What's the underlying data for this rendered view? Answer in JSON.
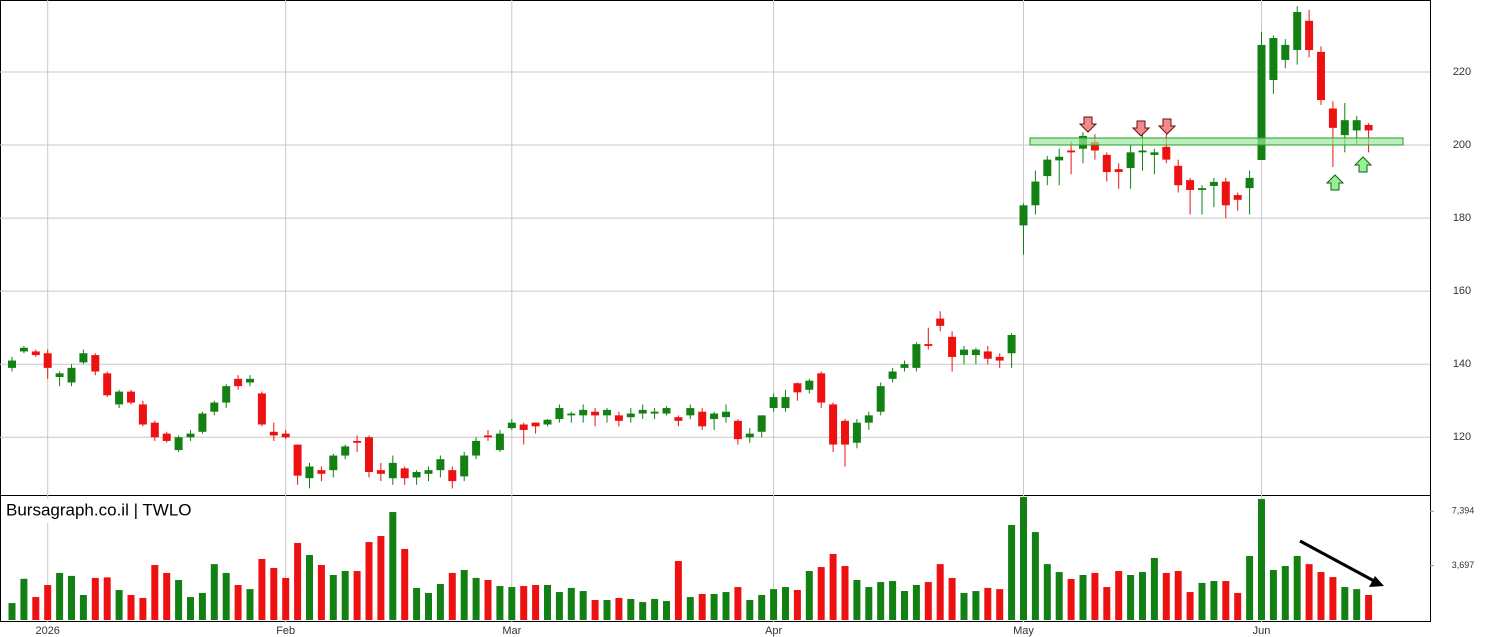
{
  "chart_data": {
    "type": "candlestick",
    "title": "Bursagraph.co.il | TWLO",
    "categories": [
      null,
      null,
      null,
      "2026",
      null,
      null,
      null,
      null,
      null,
      null,
      null,
      null,
      null,
      null,
      null,
      null,
      null,
      null,
      null,
      null,
      null,
      null,
      null,
      "Feb",
      null,
      null,
      null,
      null,
      null,
      null,
      null,
      null,
      null,
      null,
      null,
      null,
      null,
      null,
      null,
      null,
      null,
      null,
      "Mar",
      null,
      null,
      null,
      null,
      null,
      null,
      null,
      null,
      null,
      null,
      null,
      null,
      null,
      null,
      null,
      null,
      null,
      null,
      null,
      null,
      null,
      "Apr",
      null,
      null,
      null,
      null,
      null,
      null,
      null,
      null,
      null,
      null,
      null,
      null,
      null,
      null,
      null,
      null,
      null,
      null,
      null,
      null,
      "May",
      null,
      null,
      null,
      null,
      null,
      null,
      null,
      null,
      null,
      null,
      null,
      null,
      null,
      null,
      null,
      null,
      null,
      null,
      null,
      "Jun",
      null,
      null,
      null,
      null,
      null,
      null,
      null,
      null,
      null
    ],
    "open": [
      139,
      143.5,
      143.5,
      143,
      136.5,
      135,
      140.5,
      142.5,
      137.5,
      129,
      132.5,
      129,
      124,
      121,
      116.5,
      120,
      121.5,
      127,
      129.5,
      136,
      135,
      132,
      121.5,
      121,
      118,
      108.8,
      111,
      111,
      115,
      119,
      120,
      111,
      108.8,
      111.5,
      109,
      110,
      111,
      111,
      109.3,
      115,
      120.5,
      116.5,
      122.5,
      123.5,
      124,
      123.5,
      125,
      126,
      126,
      127,
      126,
      126,
      125.5,
      126.5,
      126.5,
      126.5,
      125.5,
      126,
      127,
      125,
      125.5,
      124.5,
      120,
      121.5,
      128,
      128,
      134.8,
      133,
      137.5,
      129,
      124.5,
      118.5,
      124,
      127,
      136,
      139,
      139,
      145.5,
      152.5,
      147.5,
      142.5,
      142.5,
      143.5,
      142,
      143,
      178,
      183.5,
      191.5,
      195.8,
      198.5,
      199,
      200.8,
      197.3,
      193.4,
      193.7,
      198,
      197.3,
      199.5,
      194.3,
      190.4,
      187.7,
      188.8,
      190,
      186.3,
      188.2,
      195.9,
      217.8,
      223.3,
      226,
      234,
      225.5,
      210,
      202.7,
      204,
      205.5
    ],
    "high": [
      142,
      145,
      144,
      144,
      138,
      140,
      144,
      143,
      138,
      133,
      133,
      130,
      124.5,
      121.5,
      120.5,
      122,
      127,
      130,
      134.5,
      137,
      137,
      132.5,
      124,
      122,
      118,
      113,
      112,
      115.5,
      118,
      120.5,
      120.5,
      113,
      115,
      112,
      111,
      112,
      115,
      112,
      116,
      120,
      122,
      122,
      125,
      124,
      124,
      125,
      129,
      127,
      129,
      128,
      128,
      127,
      128,
      129,
      128,
      128.5,
      126,
      129,
      128,
      127,
      129,
      125,
      122.5,
      126,
      132,
      133,
      135,
      136,
      138,
      129.5,
      125,
      125,
      127,
      135,
      139,
      141,
      146,
      150,
      154.5,
      149,
      145,
      144.5,
      145,
      143,
      148.5,
      184,
      193,
      197,
      199,
      201,
      203.5,
      203,
      198,
      195,
      200,
      203,
      199,
      203,
      196,
      191,
      189,
      191,
      191,
      187,
      193,
      231,
      230,
      229,
      238,
      237,
      227,
      212,
      211.5,
      208,
      206
    ],
    "low": [
      138,
      143,
      142,
      136,
      134,
      134,
      140,
      137,
      131,
      128,
      129,
      123,
      119,
      118.5,
      116,
      119,
      121,
      126,
      128,
      133,
      134,
      123,
      119,
      119.5,
      107,
      106,
      108,
      109,
      114,
      116,
      109,
      108,
      107,
      107,
      107,
      108,
      109,
      106,
      108,
      114,
      119,
      116,
      122,
      118,
      121,
      123,
      124,
      124,
      124,
      123,
      124,
      123,
      124,
      125,
      125,
      126,
      123,
      125,
      122,
      122,
      124,
      118,
      118.5,
      120,
      127,
      127,
      130,
      132,
      128,
      116,
      112,
      117,
      122,
      126,
      135,
      138,
      138,
      144,
      149,
      138,
      140,
      140,
      140,
      139,
      139,
      170,
      181,
      189,
      189,
      192,
      195,
      196,
      190,
      188,
      188,
      193,
      192,
      195,
      187,
      181,
      181,
      183,
      180,
      182,
      181,
      196,
      214,
      221,
      222,
      224,
      211,
      194,
      198,
      200,
      198
    ],
    "close": [
      141,
      144.5,
      142.5,
      139,
      137.5,
      139,
      143,
      138,
      131.5,
      132.5,
      129.5,
      123.5,
      120,
      119,
      120,
      121,
      126.5,
      129.5,
      134,
      134,
      136,
      123.5,
      120.5,
      120,
      109.5,
      112,
      110,
      115,
      117.5,
      118.5,
      110.5,
      110,
      113,
      108.8,
      110.5,
      111,
      114,
      108,
      115,
      119,
      120,
      121,
      124,
      122,
      123,
      124.8,
      128,
      126.5,
      127.5,
      126,
      127.5,
      124.5,
      126.5,
      127.5,
      127,
      128,
      124.5,
      128,
      123,
      126.5,
      127,
      119.5,
      121,
      126,
      131,
      131,
      132.3,
      135.5,
      129.5,
      118,
      118,
      124,
      126,
      134,
      138,
      140,
      145.5,
      145,
      150.5,
      142,
      144,
      144,
      141.5,
      141,
      148,
      183.5,
      190,
      196,
      196.8,
      198,
      202.5,
      198.5,
      192.6,
      192.6,
      198,
      198.5,
      198,
      196,
      189,
      187.7,
      188.2,
      189.9,
      183.5,
      185,
      191,
      227.4,
      229.3,
      227.4,
      236.4,
      226,
      212.3,
      204.7,
      206.8,
      206.8,
      204
    ],
    "volume": [
      1150,
      2800,
      1560,
      2380,
      3200,
      3000,
      1700,
      2860,
      2900,
      2040,
      1700,
      1500,
      3740,
      3200,
      2720,
      1560,
      1840,
      3800,
      3200,
      2380,
      2100,
      4150,
      3540,
      2860,
      5240,
      4420,
      3740,
      3060,
      3330,
      3330,
      5300,
      5710,
      7340,
      4830,
      2180,
      1840,
      2450,
      3200,
      3400,
      2860,
      2720,
      2310,
      2240,
      2310,
      2380,
      2380,
      1900,
      2180,
      1970,
      1360,
      1360,
      1500,
      1430,
      1220,
      1430,
      1290,
      4010,
      1560,
      1770,
      1770,
      1900,
      2240,
      1360,
      1700,
      2100,
      2240,
      2040,
      3330,
      3600,
      4490,
      3670,
      2720,
      2240,
      2580,
      2650,
      1970,
      2380,
      2580,
      3800,
      2860,
      1840,
      1970,
      2180,
      2100,
      6460,
      8360,
      5980,
      3800,
      3260,
      2790,
      3060,
      3200,
      2240,
      3330,
      3060,
      3260,
      4220,
      3200,
      3330,
      1900,
      2520,
      2650,
      2650,
      1840,
      4350,
      8230,
      3400,
      3670,
      4350,
      3800,
      3260,
      2920,
      2240,
      2100,
      1700
    ],
    "up_color": "#138013",
    "down_color": "#ee1111",
    "ylim": [
      104.2,
      239.7
    ],
    "yticks": [
      120,
      140,
      160,
      180,
      200,
      220
    ],
    "y2lim": [
      0,
      8500
    ],
    "y2ticks": [
      {
        "value": 3697,
        "label": "3,697"
      },
      {
        "value": 7394,
        "label": "7,394"
      }
    ],
    "grid": true
  }
}
